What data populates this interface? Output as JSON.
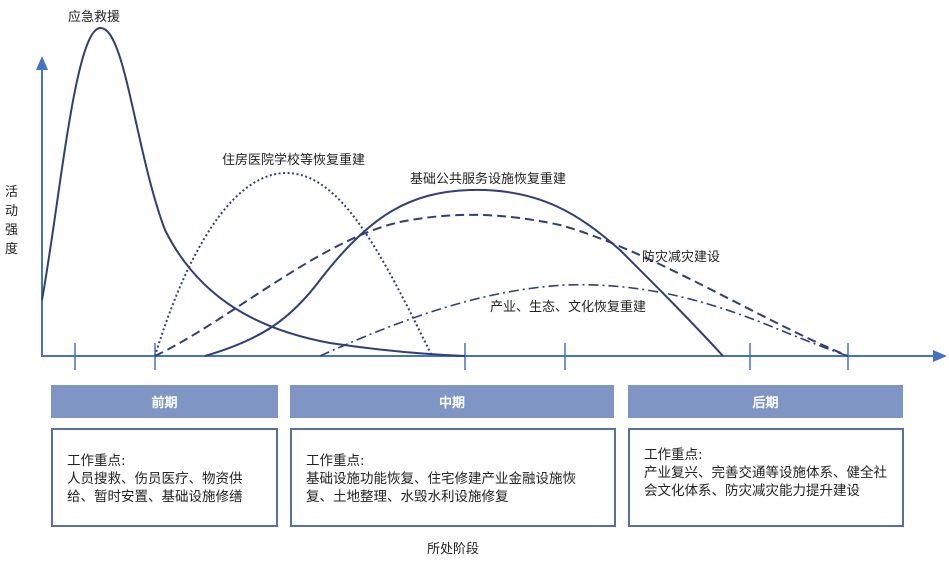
{
  "y_axis_label": "活动强度",
  "x_axis_label": "所处阶段",
  "curves": [
    {
      "label": "应急救援",
      "style": "solid"
    },
    {
      "label": "住房医院学校等恢复重建",
      "style": "dotted"
    },
    {
      "label": "基础公共服务设施恢复重建",
      "style": "solid"
    },
    {
      "label": "防灾减灾建设",
      "style": "dashed"
    },
    {
      "label": "产业、生态、文化恢复重建",
      "style": "dash-dot"
    }
  ],
  "phases": [
    {
      "title": "前期",
      "heading": "工作重点:",
      "text": "人员搜救、伤员医疗、物资供给、暂时安置、基础设施修缮"
    },
    {
      "title": "中期",
      "heading": "工作重点:",
      "text": "基础设施功能恢复、住宅修建产业金融设施恢复、土地整理、水毁水利设施修复"
    },
    {
      "title": "后期",
      "heading": "工作重点:",
      "text": "产业复兴、完善交通等设施体系、健全社会文化体系、防灾减灾能力提升建设"
    }
  ],
  "colors": {
    "axis": "#4472c4",
    "curve": "#2f3f78",
    "phase_header": "#7f96c4",
    "box_border": "#5870a0"
  }
}
